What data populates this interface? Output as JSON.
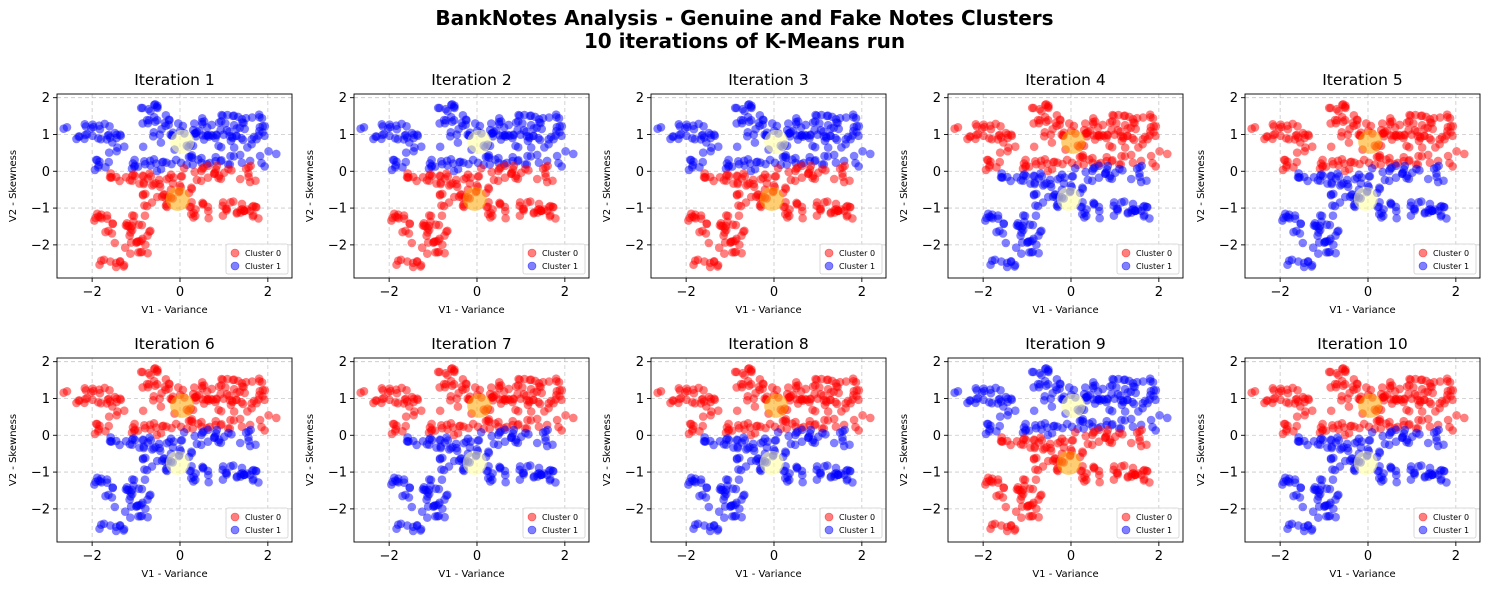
{
  "figure": {
    "title_line_1": "BankNotes Analysis - Genuine and Fake Notes Clusters",
    "title_line_2": "10 iterations of K-Means run"
  },
  "colors": {
    "cluster_0": "#ff0000",
    "cluster_1": "#0000ff",
    "centroid_0": "#ffa500",
    "centroid_1": "#ffff99",
    "grid": "#b0b0b0"
  },
  "chart_data": {
    "type": "scatter",
    "xlabel": "V1 - Variance",
    "ylabel": "V2 - Skewness",
    "xlim": [
      -2.8,
      2.55
    ],
    "ylim": [
      -2.9,
      2.1
    ],
    "xticks": [
      -2,
      0,
      2
    ],
    "yticks": [
      -2,
      -1,
      0,
      1,
      2
    ],
    "grid": true,
    "grid_style": "dashed",
    "legend_placement": "lower-right",
    "legend_entries": [
      "Cluster 0",
      "Cluster 1"
    ],
    "regions": {
      "upper": [
        {
          "x": [
            -2.65,
            -1.6
          ],
          "y": [
            0.85,
            1.3
          ],
          "n": 22
        },
        {
          "x": [
            -1.7,
            -1.1
          ],
          "y": [
            0.5,
            1.05
          ],
          "n": 12
        },
        {
          "x": [
            -1.0,
            -0.5
          ],
          "y": [
            1.3,
            1.85
          ],
          "n": 14
        },
        {
          "x": [
            -0.6,
            1.95
          ],
          "y": [
            0.95,
            1.55
          ],
          "n": 70
        },
        {
          "x": [
            0.5,
            1.95
          ],
          "y": [
            0.6,
            1.0
          ],
          "n": 22
        },
        {
          "x": [
            -1.2,
            0.3
          ],
          "y": [
            0.55,
            0.95
          ],
          "n": 8
        },
        {
          "x": [
            -1.95,
            -0.3
          ],
          "y": [
            0.0,
            0.35
          ],
          "n": 25
        },
        {
          "x": [
            -0.3,
            1.6
          ],
          "y": [
            0.15,
            0.5
          ],
          "n": 25
        },
        {
          "x": [
            1.7,
            2.2
          ],
          "y": [
            0.1,
            0.55
          ],
          "n": 5
        }
      ],
      "lower": [
        {
          "x": [
            -1.6,
            -0.1
          ],
          "y": [
            -0.45,
            -0.05
          ],
          "n": 30
        },
        {
          "x": [
            0.0,
            1.85
          ],
          "y": [
            -0.3,
            0.15
          ],
          "n": 30
        },
        {
          "x": [
            -0.9,
            0.4
          ],
          "y": [
            -0.75,
            -0.3
          ],
          "n": 12
        },
        {
          "x": [
            0.2,
            1.8
          ],
          "y": [
            -1.3,
            -0.8
          ],
          "n": 40
        },
        {
          "x": [
            -0.9,
            -0.1
          ],
          "y": [
            -1.0,
            -0.6
          ],
          "n": 14
        },
        {
          "x": [
            -2.0,
            -1.65
          ],
          "y": [
            -1.35,
            -1.15
          ],
          "n": 7
        },
        {
          "x": [
            -1.7,
            -0.6
          ],
          "y": [
            -1.95,
            -1.2
          ],
          "n": 30
        },
        {
          "x": [
            -1.35,
            -0.7
          ],
          "y": [
            -2.3,
            -1.9
          ],
          "n": 10
        },
        {
          "x": [
            -1.85,
            -1.1
          ],
          "y": [
            -2.65,
            -2.4
          ],
          "n": 10
        }
      ]
    },
    "centroids": [
      {
        "label": "upper",
        "x": 0.05,
        "y": 0.8
      },
      {
        "label": "lower",
        "x": -0.05,
        "y": -0.75
      }
    ],
    "subplots": [
      {
        "title": "Iteration 1",
        "upper_cluster": 1
      },
      {
        "title": "Iteration 2",
        "upper_cluster": 1
      },
      {
        "title": "Iteration 3",
        "upper_cluster": 1
      },
      {
        "title": "Iteration 4",
        "upper_cluster": 0
      },
      {
        "title": "Iteration 5",
        "upper_cluster": 0
      },
      {
        "title": "Iteration 6",
        "upper_cluster": 0
      },
      {
        "title": "Iteration 7",
        "upper_cluster": 0
      },
      {
        "title": "Iteration 8",
        "upper_cluster": 0
      },
      {
        "title": "Iteration 9",
        "upper_cluster": 1
      },
      {
        "title": "Iteration 10",
        "upper_cluster": 0
      }
    ]
  }
}
